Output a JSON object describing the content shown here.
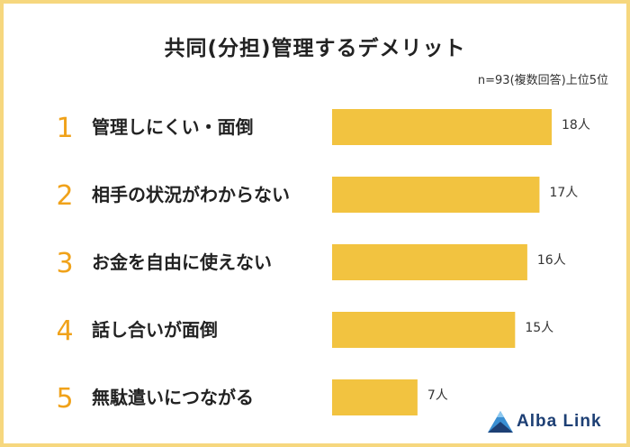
{
  "title": "共同(分担)管理するデメリット",
  "note": "n=93(複数回答)上位5位",
  "logo": {
    "text": "Alba Link"
  },
  "colors": {
    "bar": "#f2c340",
    "rank": "#f0a21a",
    "border": "#f6d77e",
    "logo": "#1d3f74"
  },
  "chart_data": {
    "type": "bar",
    "orientation": "horizontal",
    "ranks": [
      "1",
      "2",
      "3",
      "4",
      "5"
    ],
    "categories": [
      "管理しにくい・面倒",
      "相手の状況がわからない",
      "お金を自由に使えない",
      "話し合いが面倒",
      "無駄遣いにつながる"
    ],
    "values": [
      18,
      17,
      16,
      15,
      7
    ],
    "value_labels": [
      "18人",
      "17人",
      "16人",
      "15人",
      "7人"
    ],
    "unit": "人",
    "xlim": [
      0,
      18
    ],
    "grid": false,
    "legend": "none"
  }
}
